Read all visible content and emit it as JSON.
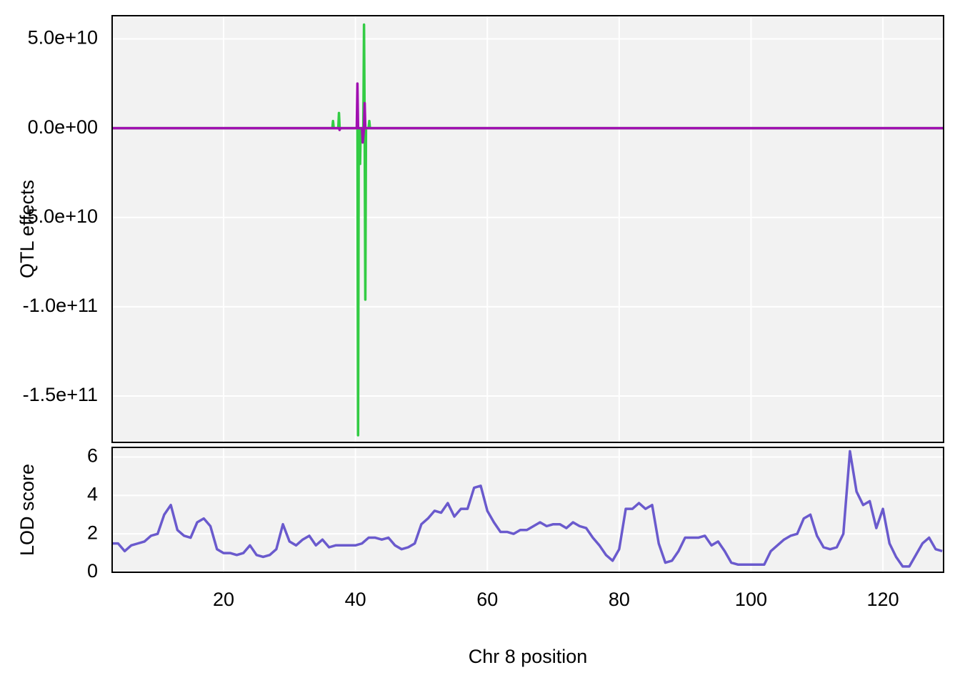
{
  "chart_data": [
    {
      "type": "line",
      "ylabel": "QTL effects",
      "xlim": [
        3.1,
        129.2
      ],
      "ylim": [
        -176000000000,
        63000000000
      ],
      "yticks": [
        {
          "value": 50000000000,
          "label": "5.0e+10"
        },
        {
          "value": 0,
          "label": "0.0e+00"
        },
        {
          "value": -50000000000,
          "label": "-5.0e+10"
        },
        {
          "value": -100000000000,
          "label": "-1.0e+11"
        },
        {
          "value": -150000000000,
          "label": "-1.5e+11"
        }
      ],
      "xticks": [
        20,
        40,
        60,
        80,
        100,
        120
      ],
      "grid": true,
      "series": [
        {
          "color": "#33cc44",
          "x": [
            3.1,
            36.5,
            36.6,
            36.7,
            37.4,
            37.5,
            37.6,
            40.3,
            40.4,
            40.5,
            40.7,
            40.8,
            41.2,
            41.3,
            41.4,
            41.5,
            41.6,
            42.0,
            42.1,
            42.2,
            129.2
          ],
          "values": [
            0,
            0,
            4000000000,
            0,
            0,
            8500000000,
            0,
            0,
            -172000000000,
            0,
            -20000000000,
            0,
            0,
            58000000000,
            0,
            -96000000000,
            0,
            0,
            4000000000,
            0,
            0
          ]
        },
        {
          "color": "#a010b0",
          "x": [
            3.1,
            37.5,
            37.6,
            37.7,
            40.2,
            40.3,
            40.4,
            41.0,
            41.1,
            41.3,
            41.4,
            41.5,
            129.2
          ],
          "values": [
            0,
            0,
            -1000000000,
            0,
            0,
            25000000000,
            0,
            0,
            -8000000000,
            0,
            14000000000,
            0,
            0
          ]
        }
      ]
    },
    {
      "type": "line",
      "ylabel": "LOD score",
      "xlabel": "Chr 8 position",
      "xlim": [
        3.1,
        129.2
      ],
      "ylim": [
        0,
        6.5
      ],
      "yticks": [
        0,
        2,
        4,
        6
      ],
      "xticks": [
        20,
        40,
        60,
        80,
        100,
        120
      ],
      "grid": true,
      "series": [
        {
          "color": "#6a5acd",
          "x": [
            3,
            4,
            5,
            6,
            7,
            8,
            9,
            10,
            11,
            12,
            13,
            14,
            15,
            16,
            17,
            18,
            19,
            20,
            21,
            22,
            23,
            24,
            25,
            26,
            27,
            28,
            29,
            30,
            31,
            32,
            33,
            34,
            35,
            36,
            37,
            38,
            39,
            40,
            41,
            42,
            43,
            44,
            45,
            46,
            47,
            48,
            49,
            50,
            51,
            52,
            53,
            54,
            55,
            56,
            57,
            58,
            59,
            60,
            61,
            62,
            63,
            64,
            65,
            66,
            67,
            68,
            69,
            70,
            71,
            72,
            73,
            74,
            75,
            76,
            77,
            78,
            79,
            80,
            81,
            82,
            83,
            84,
            85,
            86,
            87,
            88,
            89,
            90,
            91,
            92,
            93,
            94,
            95,
            96,
            97,
            98,
            99,
            100,
            101,
            102,
            103,
            104,
            105,
            106,
            107,
            108,
            109,
            110,
            111,
            112,
            113,
            114,
            115,
            116,
            117,
            118,
            119,
            120,
            121,
            122,
            123,
            124,
            125,
            126,
            127,
            128,
            129
          ],
          "values": [
            1.5,
            1.5,
            1.1,
            1.4,
            1.5,
            1.6,
            1.9,
            2.0,
            3.0,
            3.5,
            2.2,
            1.9,
            1.8,
            2.6,
            2.8,
            2.4,
            1.2,
            1.0,
            1.0,
            0.9,
            1.0,
            1.4,
            0.9,
            0.8,
            0.9,
            1.2,
            2.5,
            1.6,
            1.4,
            1.7,
            1.9,
            1.4,
            1.7,
            1.3,
            1.4,
            1.4,
            1.4,
            1.4,
            1.5,
            1.8,
            1.8,
            1.7,
            1.8,
            1.4,
            1.2,
            1.3,
            1.5,
            2.5,
            2.8,
            3.2,
            3.1,
            3.6,
            2.9,
            3.3,
            3.3,
            4.4,
            4.5,
            3.2,
            2.6,
            2.1,
            2.1,
            2.0,
            2.2,
            2.2,
            2.4,
            2.6,
            2.4,
            2.5,
            2.5,
            2.3,
            2.6,
            2.4,
            2.3,
            1.8,
            1.4,
            0.9,
            0.6,
            1.2,
            3.3,
            3.3,
            3.6,
            3.3,
            3.5,
            1.5,
            0.5,
            0.6,
            1.1,
            1.8,
            1.8,
            1.8,
            1.9,
            1.4,
            1.6,
            1.1,
            0.5,
            0.4,
            0.4,
            0.4,
            0.4,
            0.4,
            1.1,
            1.4,
            1.7,
            1.9,
            2.0,
            2.8,
            3.0,
            1.9,
            1.3,
            1.2,
            1.3,
            2.0,
            6.3,
            4.2,
            3.5,
            3.7,
            2.3,
            3.3,
            1.5,
            0.8,
            0.3,
            0.3,
            0.9,
            1.5,
            1.8,
            1.2,
            1.1
          ]
        }
      ]
    }
  ]
}
